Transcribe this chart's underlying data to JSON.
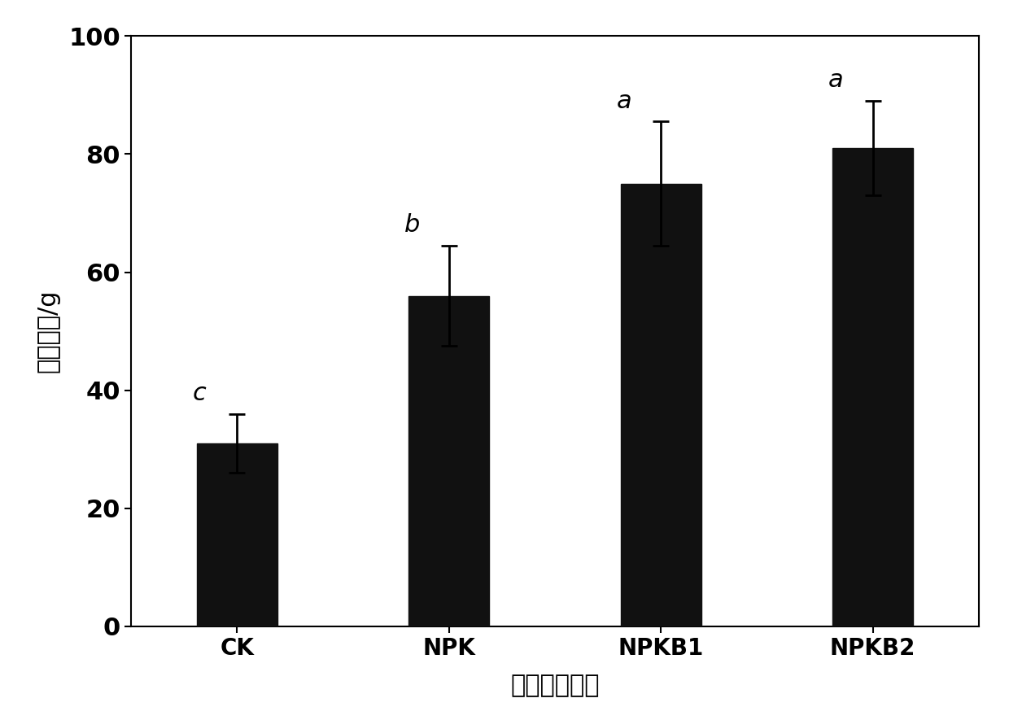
{
  "categories": [
    "CK",
    "NPK",
    "NPKB1",
    "NPKB2"
  ],
  "values": [
    31.0,
    56.0,
    75.0,
    81.0
  ],
  "errors": [
    5.0,
    8.5,
    10.5,
    8.0
  ],
  "sig_labels": [
    "c",
    "b",
    "a",
    "a"
  ],
  "bar_color": "#111111",
  "bar_width": 0.38,
  "ylim": [
    0,
    100
  ],
  "yticks": [
    0,
    20,
    40,
    60,
    80,
    100
  ],
  "ylabel": "小麦产量/g",
  "xlabel": "生物质炭处理",
  "ylabel_fontsize": 22,
  "xlabel_fontsize": 22,
  "tick_fontsize": 22,
  "sig_fontsize": 22,
  "cat_fontsize": 20,
  "background_color": "#ffffff",
  "edge_color": "#111111"
}
